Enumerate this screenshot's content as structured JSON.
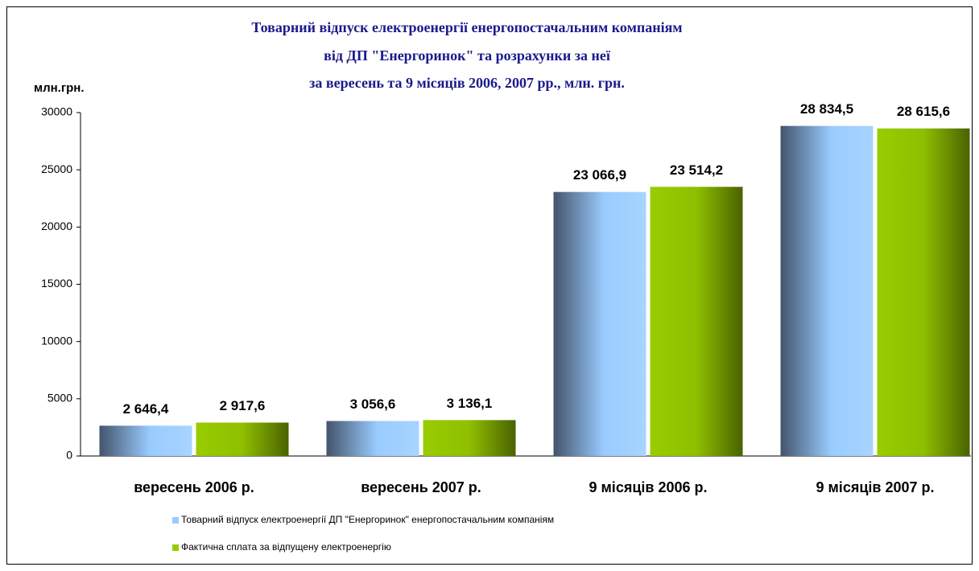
{
  "chart_data": {
    "type": "bar",
    "title": [
      "Товарний відпуск електроенергії енергопостачальним компаніям",
      "від ДП \"Енергоринок\" та розрахунки за неї",
      "за вересень та 9 місяців  2006, 2007 рр., млн. грн."
    ],
    "y_label": "млн.грн.",
    "categories": [
      "вересень 2006 р.",
      "вересень 2007 р.",
      "9 місяців 2006 р.",
      "9 місяців 2007 р."
    ],
    "series": [
      {
        "name": "Товарний відпуск електроенергії  ДП \"Енергоринок\" енергопостачальним компаніям",
        "color": "#99ccff",
        "values": [
          2646.4,
          3056.6,
          23066.9,
          28834.5
        ],
        "value_labels": [
          "2 646,4",
          "3 056,6",
          "23 066,9",
          "28 834,5"
        ]
      },
      {
        "name": "Фактична сплата за відпущену електроенергію",
        "color": "#99cc00",
        "values": [
          2917.6,
          3136.1,
          23514.2,
          28615.6
        ],
        "value_labels": [
          "2 917,6",
          "3 136,1",
          "23 514,2",
          "28 615,6"
        ]
      }
    ],
    "ylim": [
      0,
      30000
    ],
    "yticks": [
      0,
      5000,
      10000,
      15000,
      20000,
      25000,
      30000
    ],
    "legend": "bottom"
  }
}
